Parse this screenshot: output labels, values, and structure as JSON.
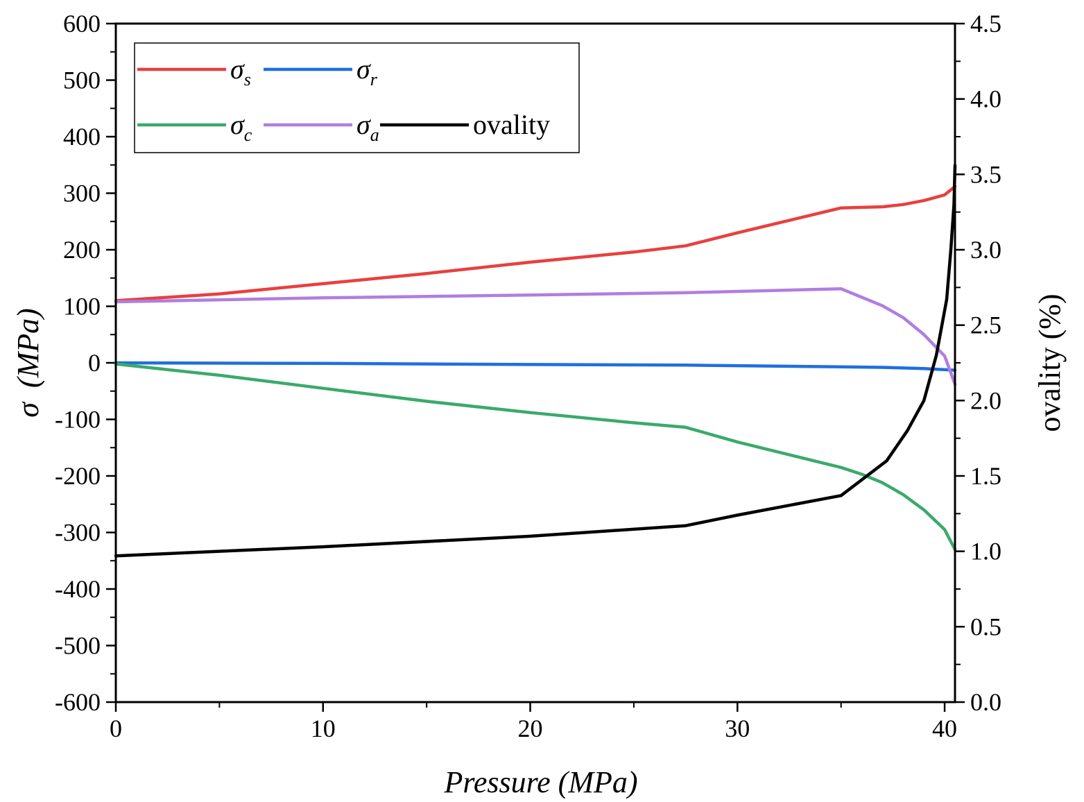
{
  "chart_data": {
    "type": "line",
    "xlabel": "Pressure (MPa)",
    "ylabel_symbol": "σ",
    "ylabel_unit": "(MPa)",
    "y2label": "ovality (%)",
    "xlim": [
      0,
      40.5
    ],
    "ylim": [
      -600,
      600
    ],
    "y2lim": [
      0,
      4.5
    ],
    "x_ticks": [
      "0",
      "10",
      "20",
      "30",
      "40"
    ],
    "y_ticks": [
      "-600",
      "-500",
      "-400",
      "-300",
      "-200",
      "-100",
      "0",
      "100",
      "200",
      "300",
      "400",
      "500",
      "600"
    ],
    "y2_ticks": [
      "0.0",
      "0.5",
      "1.0",
      "1.5",
      "2.0",
      "2.5",
      "3.0",
      "3.5",
      "4.0",
      "4.5"
    ],
    "legend_position": "top-left",
    "series": [
      {
        "symbol": "σ",
        "subscript": "s",
        "color": "#e8403f",
        "axis": "left",
        "points": [
          [
            0,
            110
          ],
          [
            5,
            122
          ],
          [
            10,
            140
          ],
          [
            15,
            158
          ],
          [
            20,
            178
          ],
          [
            25,
            196
          ],
          [
            27.5,
            207
          ],
          [
            30,
            230
          ],
          [
            35,
            274
          ],
          [
            36,
            275
          ],
          [
            37,
            276
          ],
          [
            38,
            280
          ],
          [
            39,
            287
          ],
          [
            40,
            297
          ],
          [
            40.5,
            312
          ]
        ]
      },
      {
        "symbol": "σ",
        "subscript": "r",
        "color": "#1f6fe0",
        "axis": "left",
        "points": [
          [
            0,
            0
          ],
          [
            10,
            -1
          ],
          [
            20,
            -3
          ],
          [
            27.5,
            -4
          ],
          [
            30,
            -5
          ],
          [
            35,
            -7
          ],
          [
            37,
            -8
          ],
          [
            39,
            -10
          ],
          [
            40.5,
            -13
          ]
        ]
      },
      {
        "symbol": "σ",
        "subscript": "c",
        "color": "#3aaa6b",
        "axis": "left",
        "points": [
          [
            0,
            -2
          ],
          [
            5,
            -22
          ],
          [
            10,
            -45
          ],
          [
            15,
            -68
          ],
          [
            20,
            -88
          ],
          [
            25,
            -106
          ],
          [
            27.5,
            -114
          ],
          [
            30,
            -140
          ],
          [
            35,
            -185
          ],
          [
            36,
            -197
          ],
          [
            37,
            -212
          ],
          [
            38,
            -233
          ],
          [
            39,
            -260
          ],
          [
            40,
            -295
          ],
          [
            40.5,
            -330
          ]
        ]
      },
      {
        "symbol": "σ",
        "subscript": "a",
        "color": "#b07ee0",
        "axis": "left",
        "points": [
          [
            0,
            108
          ],
          [
            10,
            115
          ],
          [
            20,
            120
          ],
          [
            27.5,
            124
          ],
          [
            35,
            131
          ],
          [
            36,
            116
          ],
          [
            37,
            101
          ],
          [
            38,
            80
          ],
          [
            39,
            50
          ],
          [
            40,
            12
          ],
          [
            40.5,
            -38
          ]
        ]
      },
      {
        "name": "ovality",
        "color": "#000000",
        "axis": "right",
        "points": [
          [
            0,
            0.97
          ],
          [
            10,
            1.03
          ],
          [
            20,
            1.1
          ],
          [
            27.5,
            1.17
          ],
          [
            30,
            1.24
          ],
          [
            35,
            1.37
          ],
          [
            37.2,
            1.6
          ],
          [
            38.2,
            1.8
          ],
          [
            39,
            2.0
          ],
          [
            39.6,
            2.3
          ],
          [
            40.1,
            2.67
          ],
          [
            40.3,
            3.0
          ],
          [
            40.45,
            3.3
          ],
          [
            40.5,
            3.56
          ]
        ]
      }
    ]
  }
}
